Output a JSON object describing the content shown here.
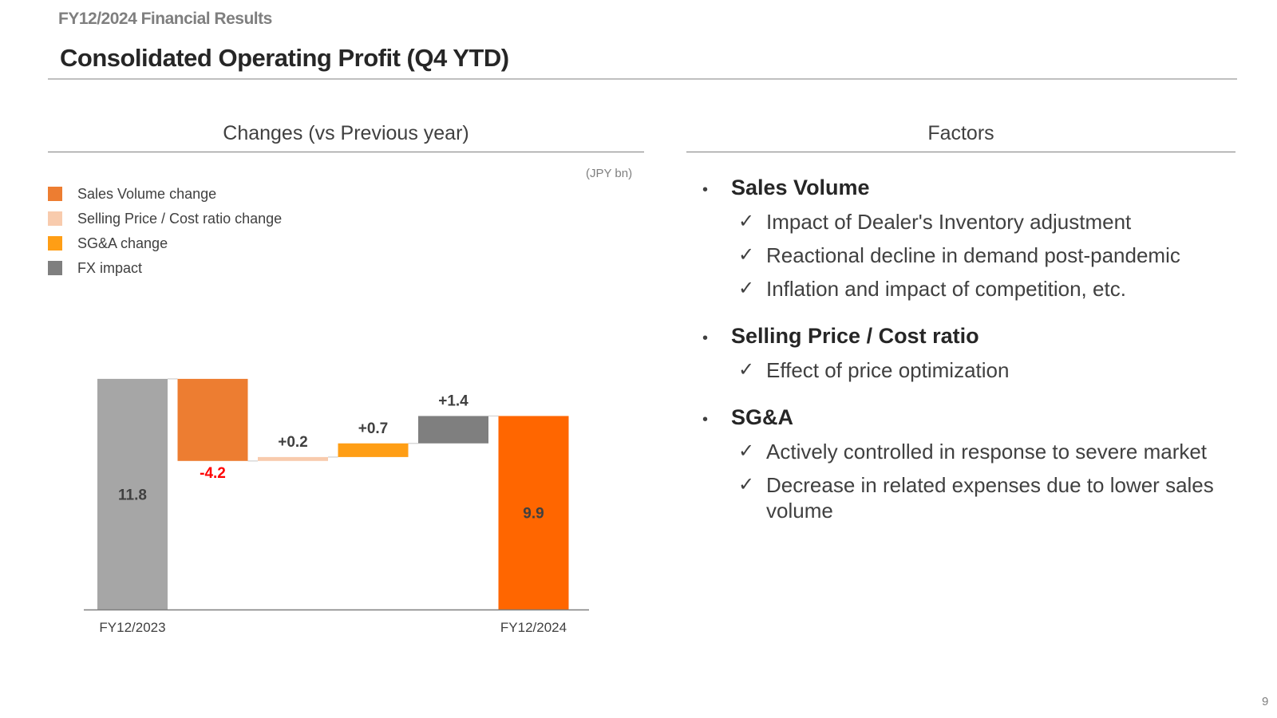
{
  "header": {
    "doc_label": "FY12/2024 Financial Results",
    "title": "Consolidated Operating Profit (Q4 YTD)"
  },
  "left_panel": {
    "heading": "Changes (vs Previous year)",
    "unit": "(JPY bn)"
  },
  "chart_data": {
    "type": "waterfall",
    "title": "Changes (vs Previous year)",
    "unit": "(JPY bn)",
    "ylim": [
      0,
      14
    ],
    "legend": [
      {
        "label": "Sales Volume change",
        "color": "#ED7D31"
      },
      {
        "label": "Selling Price / Cost ratio change",
        "color": "#F8CBAD"
      },
      {
        "label": "SG&A change",
        "color": "#FF9E15"
      },
      {
        "label": "FX impact",
        "color": "#7F7F7F"
      }
    ],
    "bars": [
      {
        "name": "FY12/2023",
        "kind": "total",
        "value": 11.8,
        "label": "11.8",
        "color": "#A6A6A6",
        "label_color": "#404040",
        "x_label": "FY12/2023"
      },
      {
        "name": "Sales Volume change",
        "kind": "delta",
        "value": -4.2,
        "label": "-4.2",
        "color": "#ED7D31",
        "label_color": "#FF0000",
        "x_label": ""
      },
      {
        "name": "Selling Price / Cost ratio change",
        "kind": "delta",
        "value": 0.2,
        "label": "+0.2",
        "color": "#F8CBAD",
        "label_color": "#404040",
        "x_label": ""
      },
      {
        "name": "SG&A change",
        "kind": "delta",
        "value": 0.7,
        "label": "+0.7",
        "color": "#FF9E15",
        "label_color": "#404040",
        "x_label": ""
      },
      {
        "name": "FX impact",
        "kind": "delta",
        "value": 1.4,
        "label": "+1.4",
        "color": "#7F7F7F",
        "label_color": "#404040",
        "x_label": ""
      },
      {
        "name": "FY12/2024",
        "kind": "total",
        "value": 9.9,
        "label": "9.9",
        "color": "#FF6600",
        "label_color": "#404040",
        "x_label": "FY12/2024"
      }
    ]
  },
  "right_panel": {
    "heading": "Factors",
    "factors": [
      {
        "title": "Sales Volume",
        "points": [
          "Impact of Dealer's Inventory adjustment",
          "Reactional decline in demand post-pandemic",
          "Inflation and impact of competition, etc."
        ]
      },
      {
        "title": "Selling Price / Cost ratio",
        "points": [
          "Effect of price optimization"
        ]
      },
      {
        "title": "SG&A",
        "points": [
          "Actively controlled in response to severe market",
          "Decrease in related expenses due to lower sales volume"
        ]
      }
    ]
  },
  "footer": {
    "page_number": "9"
  },
  "icons": {
    "bullet": "•",
    "check": "✓"
  }
}
